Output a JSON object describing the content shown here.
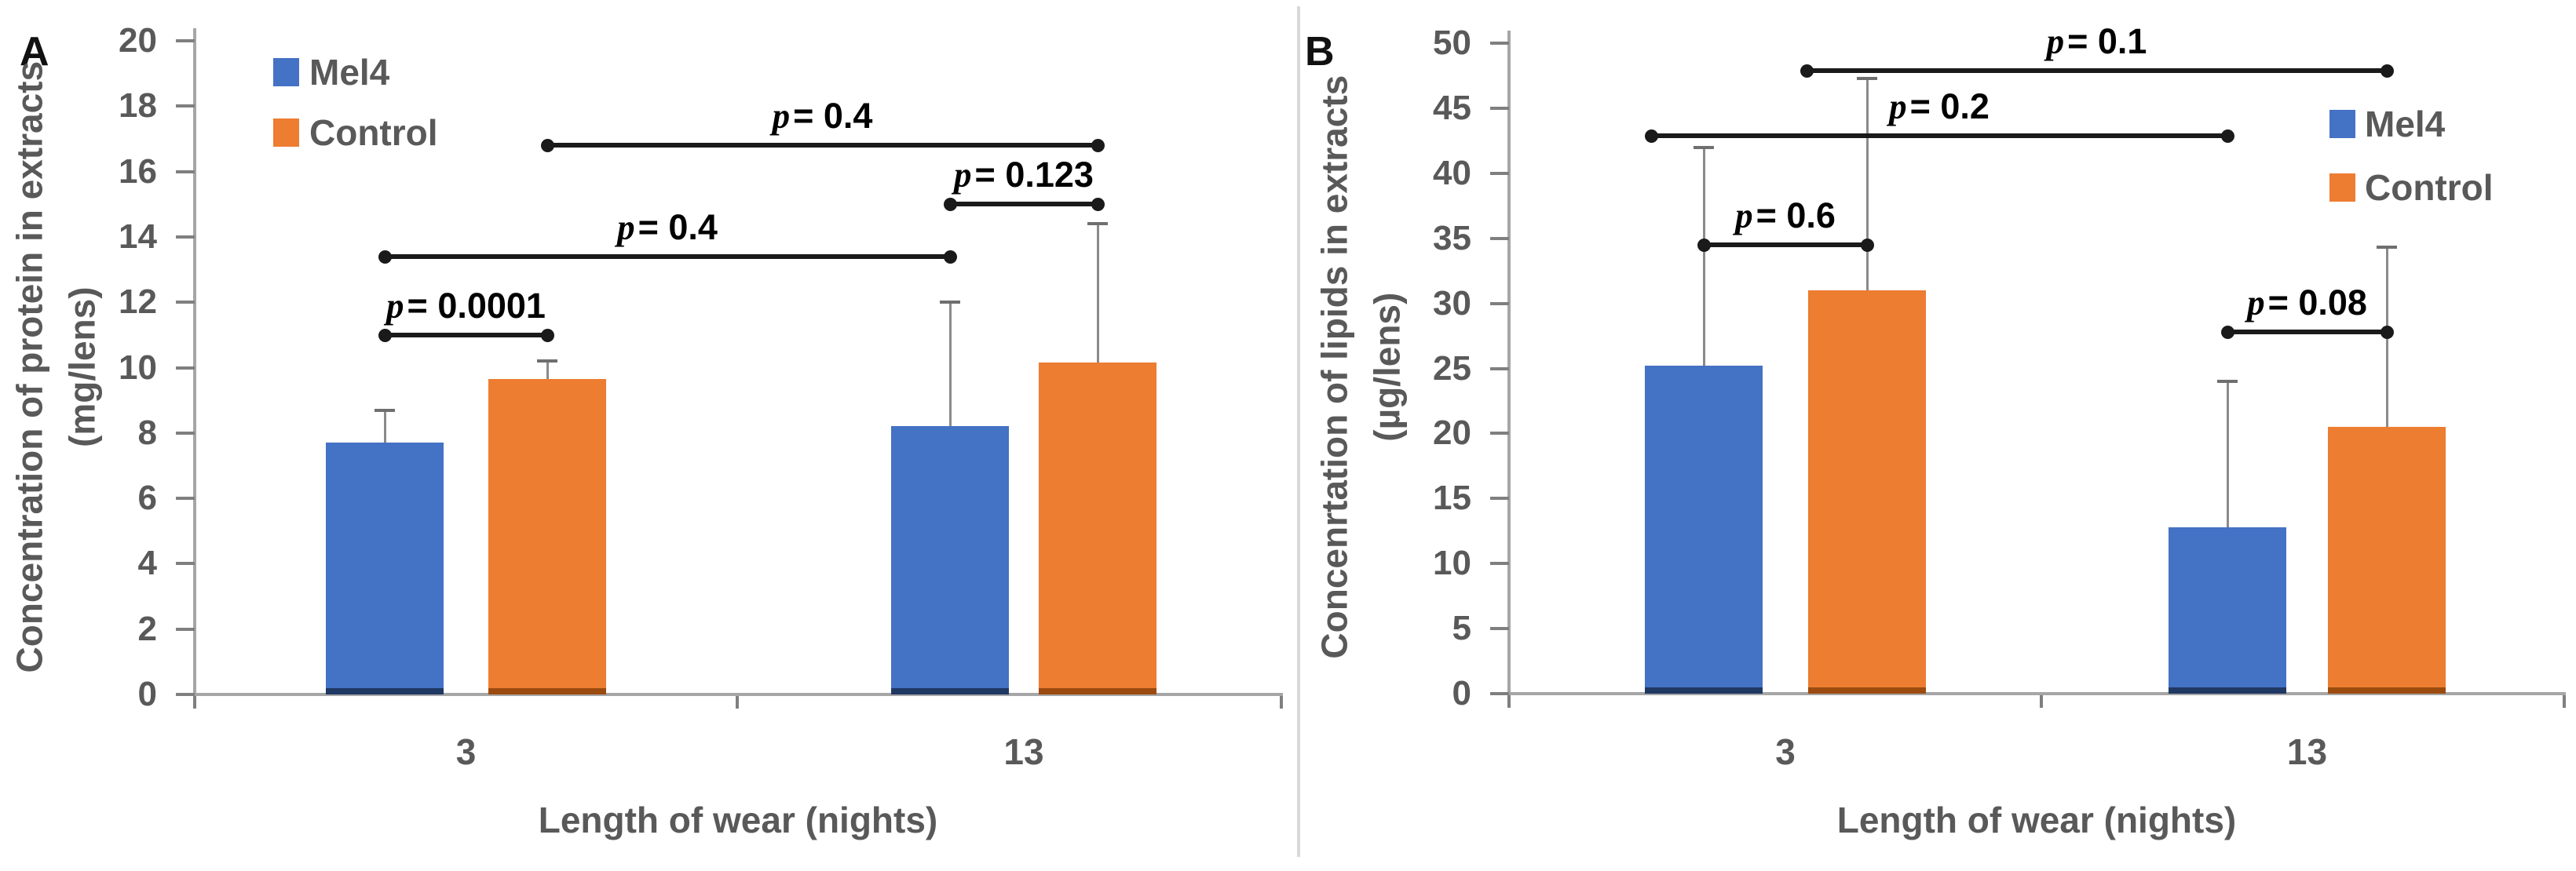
{
  "figure_title": "",
  "chart_data": [
    {
      "type": "bar",
      "panel_letter": "A",
      "ylabel_line1": "Concentration of protein in extracts",
      "ylabel_line2": "(mg/lens)",
      "xlabel": "Length of wear (nights)",
      "ylim": [
        0,
        20
      ],
      "ytick_step": 2,
      "grid": false,
      "categories": [
        "3",
        "13"
      ],
      "series": [
        {
          "name": "Mel4",
          "color": "#4472C4",
          "base_color": "#1F3864",
          "values": [
            7.7,
            8.2
          ],
          "error_tops": [
            8.7,
            12.0
          ]
        },
        {
          "name": "Control",
          "color": "#ED7D31",
          "base_color": "#9C4B10",
          "values": [
            9.65,
            10.15
          ],
          "error_tops": [
            10.2,
            14.4
          ]
        }
      ],
      "legend": {
        "entries": [
          "Mel4",
          "Control"
        ],
        "position": "top-left"
      },
      "brackets": [
        {
          "p_label": "p = 0.0001",
          "y": 11.0,
          "from_series": 0,
          "from_category": 0,
          "to_series": 1,
          "to_category": 0
        },
        {
          "p_label": "p = 0.4",
          "y": 13.4,
          "from_series": 0,
          "from_category": 0,
          "to_series": 0,
          "to_category": 1
        },
        {
          "p_label": "p = 0.123",
          "y": 15.0,
          "from_series": 0,
          "from_category": 1,
          "to_series": 1,
          "to_category": 1
        },
        {
          "p_label": "p = 0.4",
          "y": 16.8,
          "from_series": 1,
          "from_category": 0,
          "to_series": 1,
          "to_category": 1
        }
      ]
    },
    {
      "type": "bar",
      "panel_letter": "B",
      "ylabel_line1": "Concenrtation of lipids in extracts",
      "ylabel_line2": "(µg/lens)",
      "xlabel": "Length of wear (nights)",
      "ylim": [
        0,
        50
      ],
      "ytick_step": 5,
      "grid": false,
      "categories": [
        "3",
        "13"
      ],
      "series": [
        {
          "name": "Mel4",
          "color": "#4472C4",
          "base_color": "#1F3864",
          "values": [
            25.2,
            12.8
          ],
          "error_tops": [
            42.0,
            24.0
          ]
        },
        {
          "name": "Control",
          "color": "#ED7D31",
          "base_color": "#9C4B10",
          "values": [
            31.0,
            20.5
          ],
          "error_tops": [
            47.3,
            34.3
          ]
        }
      ],
      "legend": {
        "entries": [
          "Mel4",
          "Control"
        ],
        "position": "right"
      },
      "brackets": [
        {
          "p_label": "p = 0.6",
          "y": 34.5,
          "from_series": 0,
          "from_category": 0,
          "to_series": 1,
          "to_category": 0
        },
        {
          "p_label": "p = 0.2",
          "y": 42.9,
          "from_series": 0,
          "from_category": 0,
          "to_series": 0,
          "to_category": 1
        },
        {
          "p_label": "p = 0.1",
          "y": 47.9,
          "from_series": 1,
          "from_category": 0,
          "to_series": 1,
          "to_category": 1
        },
        {
          "p_label": "p = 0.08",
          "y": 27.8,
          "from_series": 0,
          "from_category": 1,
          "to_series": 1,
          "to_category": 1
        }
      ]
    }
  ]
}
